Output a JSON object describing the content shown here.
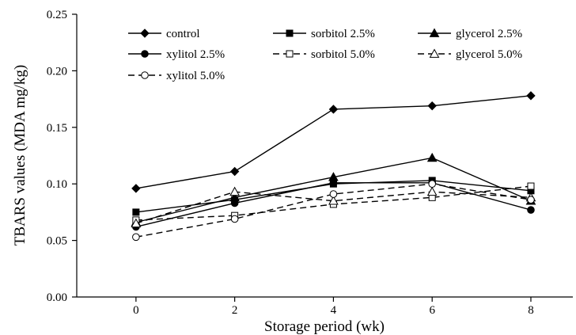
{
  "chart_data": {
    "type": "line",
    "xlabel": "Storage period (wk)",
    "ylabel": "TBARS values (MDA mg/kg)",
    "x": [
      0,
      2,
      4,
      6,
      8
    ],
    "x_tick_labels": [
      "0",
      "2",
      "4",
      "6",
      "8"
    ],
    "ylim": [
      0,
      0.25
    ],
    "y_tick_labels": [
      "0.00",
      "0.05",
      "0.10",
      "0.15",
      "0.20",
      "0.25"
    ],
    "grid": false,
    "legend_position": "top",
    "series": [
      {
        "name": "control",
        "marker": "diamond",
        "line": "solid",
        "values": [
          0.096,
          0.111,
          0.166,
          0.169,
          0.178
        ]
      },
      {
        "name": "sorbitol 2.5%",
        "marker": "square",
        "line": "solid",
        "values": [
          0.075,
          0.086,
          0.1,
          0.103,
          0.094
        ]
      },
      {
        "name": "glycerol 2.5%",
        "marker": "triangle",
        "line": "solid",
        "values": [
          0.066,
          0.088,
          0.106,
          0.123,
          0.085
        ]
      },
      {
        "name": "xylitol 2.5%",
        "marker": "circle",
        "line": "solid",
        "values": [
          0.062,
          0.083,
          0.101,
          0.101,
          0.077
        ]
      },
      {
        "name": "sorbitol 5.0%",
        "marker": "square-open",
        "line": "dashed",
        "values": [
          0.068,
          0.072,
          0.082,
          0.088,
          0.098
        ]
      },
      {
        "name": "glycerol 5.0%",
        "marker": "triangle-open",
        "line": "dashed",
        "values": [
          0.065,
          0.093,
          0.085,
          0.093,
          0.088
        ]
      },
      {
        "name": "xylitol 5.0%",
        "marker": "circle-open",
        "line": "dashed",
        "values": [
          0.053,
          0.069,
          0.091,
          0.1,
          0.086
        ]
      }
    ]
  }
}
